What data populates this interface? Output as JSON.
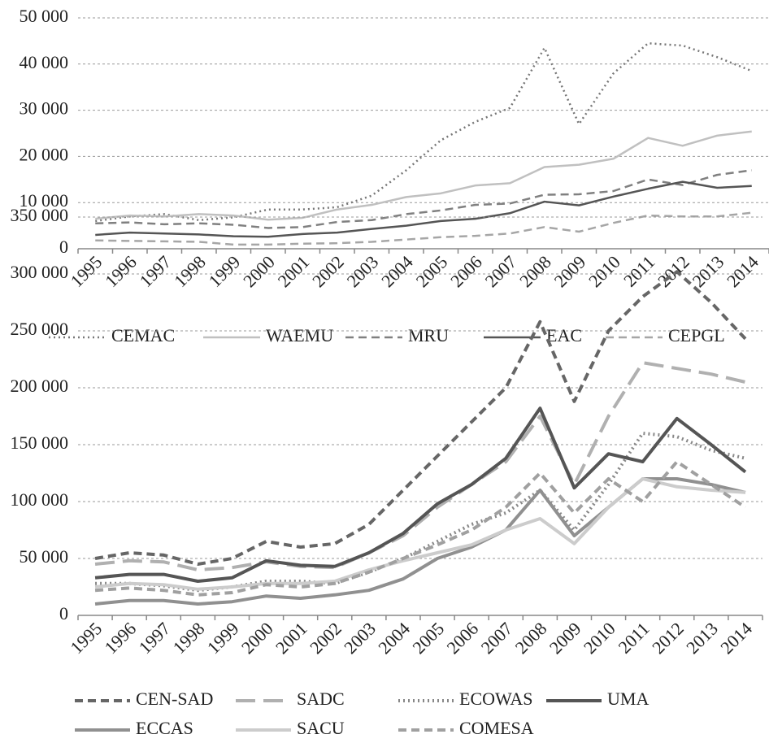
{
  "chart_data": [
    {
      "type": "line",
      "categories": [
        "1995",
        "1996",
        "1997",
        "1998",
        "1999",
        "2000",
        "2001",
        "2002",
        "2003",
        "2004",
        "2005",
        "2006",
        "2007",
        "2008",
        "2009",
        "2010",
        "2011",
        "2012",
        "2013",
        "2014"
      ],
      "ylim": [
        0,
        50000
      ],
      "yticks": [
        0,
        {
          "value": 10000,
          "label": "10 000"
        },
        {
          "value": 20000,
          "label": "20 000"
        },
        {
          "value": 30000,
          "label": "30 000"
        },
        {
          "value": 40000,
          "label": "40 000"
        },
        {
          "value": 50000,
          "label": "50 000"
        }
      ],
      "grid": true,
      "legend": "bottom",
      "series": [
        {
          "name": "CEMAC",
          "color": "#777777",
          "style": "dotted",
          "values": [
            6000,
            7000,
            7500,
            6200,
            6800,
            8500,
            8500,
            9000,
            11500,
            17000,
            23500,
            27500,
            30500,
            43500,
            27000,
            38000,
            44500,
            44000,
            41500,
            38500
          ]
        },
        {
          "name": "WAEMU",
          "color": "#c0c0c0",
          "style": "solid",
          "values": [
            6500,
            7200,
            7000,
            7500,
            7200,
            6300,
            6700,
            8500,
            9500,
            11200,
            12000,
            13700,
            14200,
            17700,
            18200,
            19500,
            24000,
            22300,
            24500,
            25400
          ]
        },
        {
          "name": "MRU",
          "color": "#808080",
          "style": "dashed",
          "values": [
            5500,
            5700,
            5300,
            5500,
            5200,
            4500,
            4700,
            5800,
            6200,
            7500,
            8300,
            9500,
            9800,
            11700,
            11800,
            12500,
            15000,
            13800,
            16000,
            17000
          ]
        },
        {
          "name": "EAC",
          "color": "#555555",
          "style": "solid",
          "values": [
            3000,
            3500,
            3300,
            3100,
            2700,
            2600,
            3200,
            3500,
            4300,
            5000,
            6000,
            6500,
            7700,
            10200,
            9400,
            11300,
            13000,
            14500,
            13200,
            13600
          ]
        },
        {
          "name": "CEPGL",
          "color": "#a6a6a6",
          "style": "dashed",
          "values": [
            1800,
            1700,
            1600,
            1500,
            900,
            900,
            1100,
            1200,
            1500,
            2000,
            2500,
            2800,
            3300,
            4700,
            3700,
            5600,
            7200,
            7000,
            7000,
            7800
          ]
        }
      ]
    },
    {
      "type": "line",
      "categories": [
        "1995",
        "1996",
        "1997",
        "1998",
        "1999",
        "2000",
        "2001",
        "2002",
        "2003",
        "2004",
        "2005",
        "2006",
        "2007",
        "2008",
        "2009",
        "2010",
        "2011",
        "2012",
        "2013",
        "2014"
      ],
      "ylim": [
        0,
        350000
      ],
      "yticks": [
        0,
        {
          "value": 50000,
          "label": "50 000"
        },
        {
          "value": 100000,
          "label": "100 000"
        },
        {
          "value": 150000,
          "label": "150 000"
        },
        {
          "value": 200000,
          "label": "200 000"
        },
        {
          "value": 250000,
          "label": "250 000"
        },
        {
          "value": 300000,
          "label": "300 000"
        },
        {
          "value": 350000,
          "label": "350 000"
        }
      ],
      "grid": true,
      "legend": "bottom",
      "series": [
        {
          "name": "CEN-SAD",
          "color": "#666666",
          "style": "dashed",
          "values": [
            50000,
            55000,
            53000,
            45000,
            50000,
            65000,
            60000,
            63000,
            80000,
            110000,
            140000,
            170000,
            200000,
            258000,
            188000,
            250000,
            280000,
            302000,
            275000,
            243000
          ]
        },
        {
          "name": "SADC",
          "color": "#b0b0b0",
          "style": "longdash",
          "values": [
            45000,
            48000,
            47000,
            40000,
            42000,
            47000,
            43000,
            42000,
            55000,
            70000,
            95000,
            115000,
            135000,
            175000,
            115000,
            175000,
            222000,
            217000,
            212000,
            205000
          ]
        },
        {
          "name": "ECOWAS",
          "color": "#888888",
          "style": "dotted",
          "values": [
            28000,
            28000,
            26000,
            22000,
            25000,
            30000,
            30000,
            28000,
            38000,
            50000,
            65000,
            80000,
            90000,
            110000,
            75000,
            115000,
            160000,
            157000,
            145000,
            138000
          ]
        },
        {
          "name": "UMA",
          "color": "#555555",
          "style": "solid",
          "values": [
            33000,
            36000,
            36000,
            30000,
            33000,
            48000,
            44000,
            43000,
            55000,
            72000,
            98000,
            115000,
            138000,
            182000,
            112000,
            142000,
            135000,
            173000,
            150000,
            126000
          ]
        },
        {
          "name": "ECCAS",
          "color": "#909090",
          "style": "solid",
          "values": [
            10000,
            13000,
            13000,
            10000,
            12000,
            17000,
            15000,
            18000,
            22000,
            32000,
            50000,
            60000,
            75000,
            110000,
            70000,
            95000,
            120000,
            120000,
            115000,
            108000
          ]
        },
        {
          "name": "SACU",
          "color": "#cccccc",
          "style": "solid",
          "values": [
            25000,
            28000,
            27000,
            23000,
            25000,
            28000,
            28000,
            30000,
            40000,
            48000,
            55000,
            62000,
            75000,
            85000,
            63000,
            95000,
            120000,
            113000,
            110000,
            108000
          ]
        },
        {
          "name": "COMESA",
          "color": "#a0a0a0",
          "style": "dashed",
          "values": [
            22000,
            24000,
            22000,
            18000,
            20000,
            27000,
            25000,
            28000,
            38000,
            50000,
            62000,
            75000,
            95000,
            125000,
            90000,
            120000,
            100000,
            135000,
            115000,
            95000
          ]
        }
      ]
    }
  ]
}
